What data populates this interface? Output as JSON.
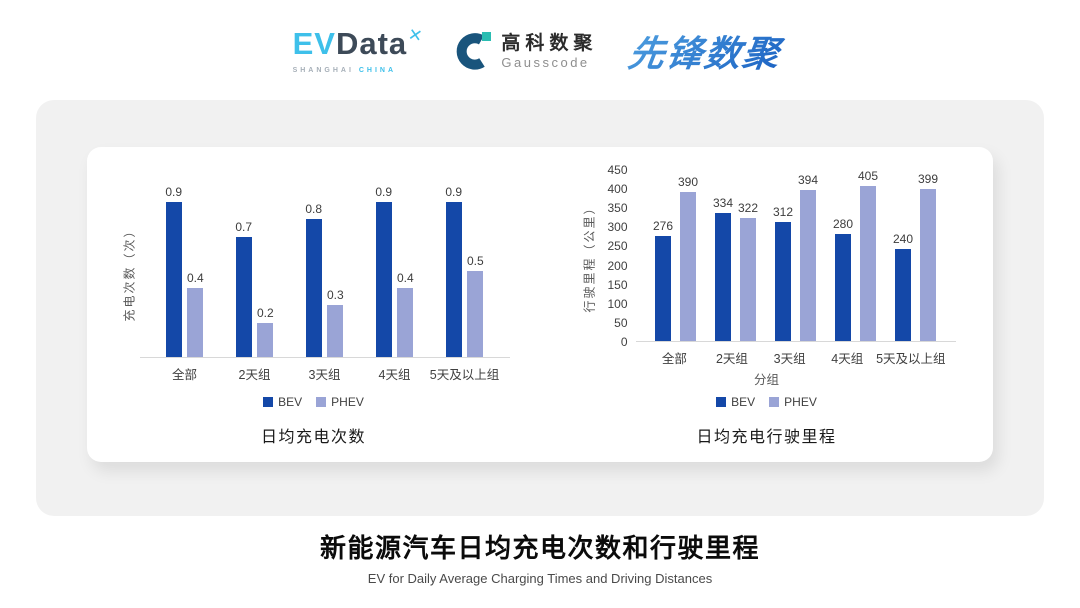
{
  "header": {
    "evdata": {
      "ev": "EV",
      "data": "Data",
      "mark": "✕",
      "sub1": "SHANGHAI",
      "sub2": "CHINA"
    },
    "gausscode": {
      "cn": "高科数聚",
      "en": "Gausscode"
    },
    "pioneer": {
      "text": "先锋数聚"
    }
  },
  "colors": {
    "bev": "#1448A8",
    "phev": "#9AA4D6",
    "axis_line": "#D8D8D8",
    "card_bg": "#F1F1F1"
  },
  "chart_data": [
    {
      "type": "bar",
      "title": "日均充电次数",
      "ylabel": "充电次数（次）",
      "xlabel": "",
      "categories": [
        "全部",
        "2天组",
        "3天组",
        "4天组",
        "5天及以上组"
      ],
      "series": [
        {
          "name": "BEV",
          "color_key": "bev",
          "values": [
            0.9,
            0.7,
            0.8,
            0.9,
            0.9
          ]
        },
        {
          "name": "PHEV",
          "color_key": "phev",
          "values": [
            0.4,
            0.2,
            0.3,
            0.4,
            0.5
          ]
        }
      ],
      "ylim": [
        0,
        1.0
      ],
      "yticks": [],
      "grid": false,
      "legend_position": "bottom"
    },
    {
      "type": "bar",
      "title": "日均充电行驶里程",
      "ylabel": "行驶里程（公里）",
      "xlabel": "分组",
      "categories": [
        "全部",
        "2天组",
        "3天组",
        "4天组",
        "5天及以上组"
      ],
      "series": [
        {
          "name": "BEV",
          "color_key": "bev",
          "values": [
            276,
            334,
            312,
            280,
            240
          ]
        },
        {
          "name": "PHEV",
          "color_key": "phev",
          "values": [
            390,
            322,
            394,
            405,
            399
          ]
        }
      ],
      "ylim": [
        0,
        450
      ],
      "yticks": [
        0,
        50,
        100,
        150,
        200,
        250,
        300,
        350,
        400,
        450
      ],
      "grid": false,
      "legend_position": "bottom"
    }
  ],
  "footer": {
    "title": "新能源汽车日均充电次数和行驶里程",
    "subtitle": "EV for Daily Average Charging Times and Driving Distances"
  }
}
